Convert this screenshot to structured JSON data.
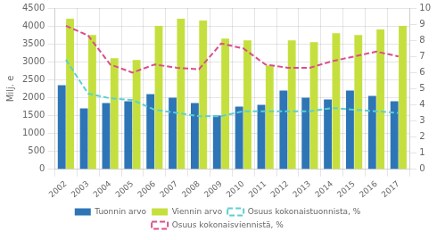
{
  "chart_data": {
    "type": "bar",
    "ylabel": "Milj. e",
    "categories": [
      "2002",
      "2003",
      "2004",
      "2005",
      "2006",
      "2007",
      "2008",
      "2009",
      "2010",
      "2011",
      "2012",
      "2013",
      "2014",
      "2015",
      "2016",
      "2017"
    ],
    "series": [
      {
        "name": "Tuonnin arvo",
        "color": "#2e75b6",
        "values": [
          2350,
          1700,
          1850,
          1900,
          2100,
          2000,
          1850,
          1500,
          1750,
          1800,
          2200,
          2000,
          1950,
          2200,
          2050,
          1900
        ]
      },
      {
        "name": "Viennin arvo",
        "color": "#c5e03e",
        "values": [
          4200,
          3750,
          3100,
          3050,
          4000,
          4200,
          4150,
          3650,
          3600,
          2900,
          3600,
          3550,
          3800,
          3750,
          3900,
          4000
        ]
      },
      {
        "name": "Osuus kokonaistuonnista, %",
        "type": "line",
        "axis": "y2",
        "color": "#5ecfcf",
        "line_style": "dashed",
        "values": [
          6.8,
          4.7,
          4.4,
          4.3,
          3.7,
          3.5,
          3.3,
          3.3,
          3.6,
          3.6,
          3.6,
          3.6,
          3.8,
          3.7,
          3.6,
          3.5
        ]
      },
      {
        "name": "Osuus kokonaisviennistä, %",
        "type": "line",
        "axis": "y2",
        "color": "#d94f8c",
        "line_style": "dashed",
        "values": [
          8.9,
          8.3,
          6.5,
          6.0,
          6.5,
          6.3,
          6.2,
          7.8,
          7.5,
          6.5,
          6.3,
          6.3,
          6.7,
          7.0,
          7.3,
          7.0
        ]
      }
    ],
    "ylim": [
      0,
      4500
    ],
    "yticks": [
      0,
      500,
      1000,
      1500,
      2000,
      2500,
      3000,
      3500,
      4000,
      4500
    ],
    "y2lim": [
      0,
      10
    ],
    "y2ticks": [
      0,
      1,
      2,
      3,
      4,
      5,
      6,
      7,
      8,
      9,
      10
    ],
    "grid": true,
    "legend": "bottom"
  }
}
